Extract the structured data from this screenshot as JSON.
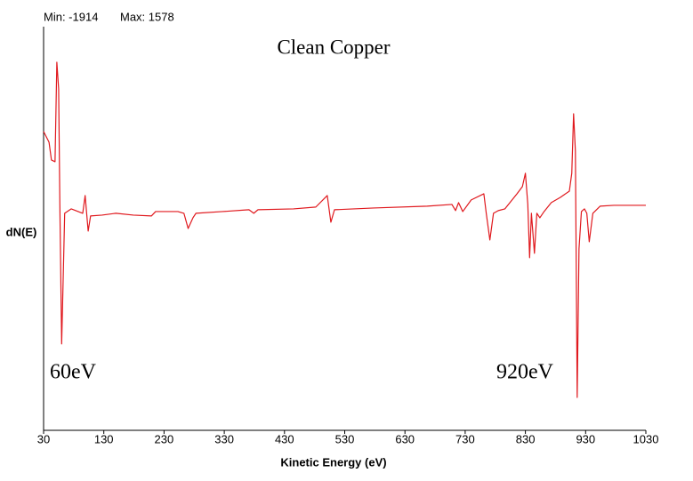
{
  "chart_data": {
    "type": "line",
    "title": "Clean Copper",
    "stats": [
      "Min: -1914",
      "Max: 1578"
    ],
    "annotations": [
      "60eV",
      "920eV"
    ],
    "x_label": "Kinetic Energy (eV)",
    "y_label": "dN(E)",
    "color": "#e0191e",
    "xlim": [
      30,
      1030
    ],
    "xticks": [
      30,
      130,
      230,
      330,
      430,
      530,
      630,
      730,
      830,
      930,
      1030
    ],
    "ylim": [
      -2257,
      1948
    ],
    "x": [
      30,
      39,
      43,
      49,
      52,
      55,
      57,
      60,
      63,
      65,
      76,
      95,
      99,
      104,
      108,
      127,
      150,
      179,
      209,
      216,
      253,
      263,
      270,
      278,
      283,
      327,
      371,
      379,
      386,
      445,
      482,
      501,
      507,
      513,
      578,
      667,
      708,
      714,
      719,
      726,
      740,
      761,
      765,
      771,
      777,
      785,
      796,
      816,
      825,
      830,
      834,
      837,
      840,
      845,
      849,
      854,
      861,
      873,
      888,
      903,
      907,
      910,
      913,
      916,
      919,
      923,
      928,
      932,
      936,
      942,
      954,
      977,
      1030
    ],
    "series": [
      {
        "name": "dN(E)",
        "values": [
          856,
          745,
          559,
          541,
          1578,
          1300,
          96,
          -1357,
          -552,
          4,
          50,
          4,
          189,
          -181,
          -24,
          -15,
          4,
          -15,
          -24,
          22,
          22,
          4,
          -154,
          -43,
          4,
          22,
          41,
          4,
          41,
          50,
          69,
          189,
          -89,
          41,
          59,
          78,
          96,
          32,
          115,
          22,
          143,
          207,
          4,
          -274,
          4,
          32,
          50,
          207,
          282,
          421,
          96,
          -459,
          4,
          -413,
          4,
          -43,
          22,
          115,
          170,
          235,
          421,
          1041,
          652,
          -1914,
          -367,
          22,
          50,
          4,
          -293,
          4,
          78,
          87,
          87
        ]
      }
    ]
  }
}
